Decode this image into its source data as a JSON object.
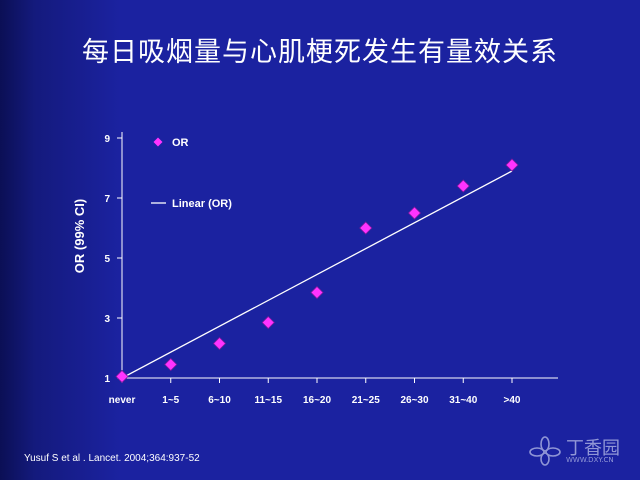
{
  "slide": {
    "title": "每日吸烟量与心肌梗死发生有量效关系",
    "citation": "Yusuf S et  al . Lancet. 2004;364:937-52",
    "background_color": "#1b22a0"
  },
  "watermark": {
    "text": "丁香园",
    "subtext": "WWW.DXY.CN"
  },
  "chart_data": {
    "type": "scatter",
    "title": "",
    "xlabel": "",
    "ylabel": "OR   (99% CI)",
    "categories": [
      "never",
      "1~5",
      "6~10",
      "11~15",
      "16~20",
      "21~25",
      "26~30",
      "31~40",
      ">40"
    ],
    "y_ticks": [
      1,
      3,
      5,
      7,
      9
    ],
    "ylim": [
      1,
      9
    ],
    "series": [
      {
        "name": "OR",
        "marker": "diamond",
        "color": "#ff33ff",
        "values": [
          1.05,
          1.45,
          2.15,
          2.85,
          3.85,
          6.0,
          6.5,
          7.4,
          8.1
        ]
      },
      {
        "name": "Linear (OR)",
        "type": "line",
        "color": "#ffffff",
        "start": [
          1,
          1.0
        ],
        "end": [
          9,
          7.9
        ]
      }
    ],
    "legend_position": "top-left",
    "grid": false,
    "axis_color": "#ffffff",
    "text_color": "#ffffff"
  }
}
